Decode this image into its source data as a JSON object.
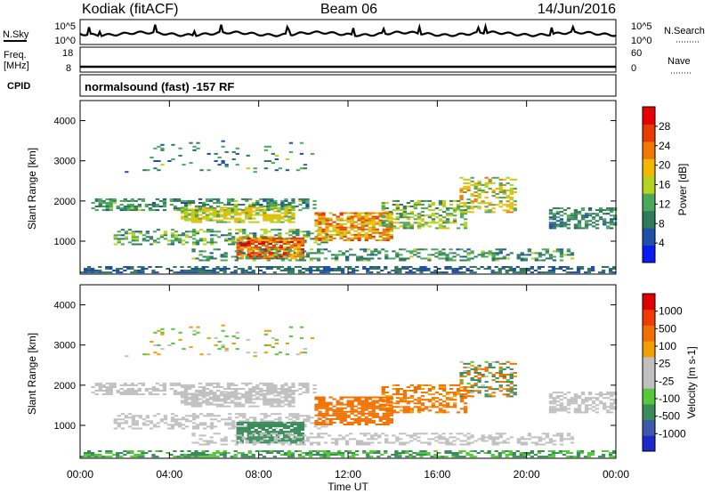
{
  "header": {
    "station": "Kodiak (fitACF)",
    "beam": "Beam 06",
    "date": "14/Jun/2016"
  },
  "param_panels": {
    "nsky": {
      "left_label": "N.Sky",
      "left_ticks": [
        "10^5",
        "10^0"
      ],
      "right_ticks": [
        "10^5",
        "10^0"
      ],
      "right_label": "N.Search"
    },
    "freq": {
      "left_label_line1": "Freq.",
      "left_label_line2": "[MHz]",
      "left_ticks": [
        "18",
        "8"
      ],
      "right_ticks": [
        "60",
        "0"
      ],
      "right_label": "Nave"
    },
    "cpid": {
      "left_label": "CPID",
      "mode_text": "normalsound (fast) -157 RF"
    }
  },
  "colors": {
    "power_scale": [
      "#0a1cf0",
      "#1f4fa8",
      "#2f7a5a",
      "#49a85a",
      "#b4d21e",
      "#f2b800",
      "#f07800",
      "#e63c00",
      "#e60000"
    ],
    "velocity_scale": [
      "#1e28c8",
      "#3c5aa8",
      "#3a8c5a",
      "#55c83c",
      "#c0c0c0",
      "#c0c0c0",
      "#f0a000",
      "#f07000",
      "#f03c00",
      "#e00000"
    ]
  },
  "chart_data": [
    {
      "type": "heatmap",
      "title": "Power",
      "xlabel": "Time UT",
      "ylabel": "Slant Range [km]",
      "x_ticks": [
        "00:00",
        "04:00",
        "08:00",
        "12:00",
        "16:00",
        "20:00",
        "00:00"
      ],
      "y_ticks": [
        "1000",
        "2000",
        "3000",
        "4000"
      ],
      "xlim_hours": [
        0,
        24
      ],
      "ylim_km": [
        180,
        4500
      ],
      "colorbar_label": "Power [dB]",
      "colorbar_ticks": [
        "4",
        "8",
        "12",
        "16",
        "20",
        "24",
        "28"
      ],
      "colorbar_range": [
        0,
        30
      ]
    },
    {
      "type": "heatmap",
      "title": "Velocity",
      "xlabel": "Time UT",
      "ylabel": "Slant Range [km]",
      "x_ticks": [
        "00:00",
        "04:00",
        "08:00",
        "12:00",
        "16:00",
        "20:00",
        "00:00"
      ],
      "y_ticks": [
        "1000",
        "2000",
        "3000",
        "4000"
      ],
      "xlim_hours": [
        0,
        24
      ],
      "ylim_km": [
        180,
        4500
      ],
      "colorbar_label": "Velocity [m s-1]",
      "colorbar_ticks": [
        "1000",
        "500",
        "100",
        "25",
        "-25",
        "-100",
        "-500",
        "-1000"
      ]
    }
  ]
}
